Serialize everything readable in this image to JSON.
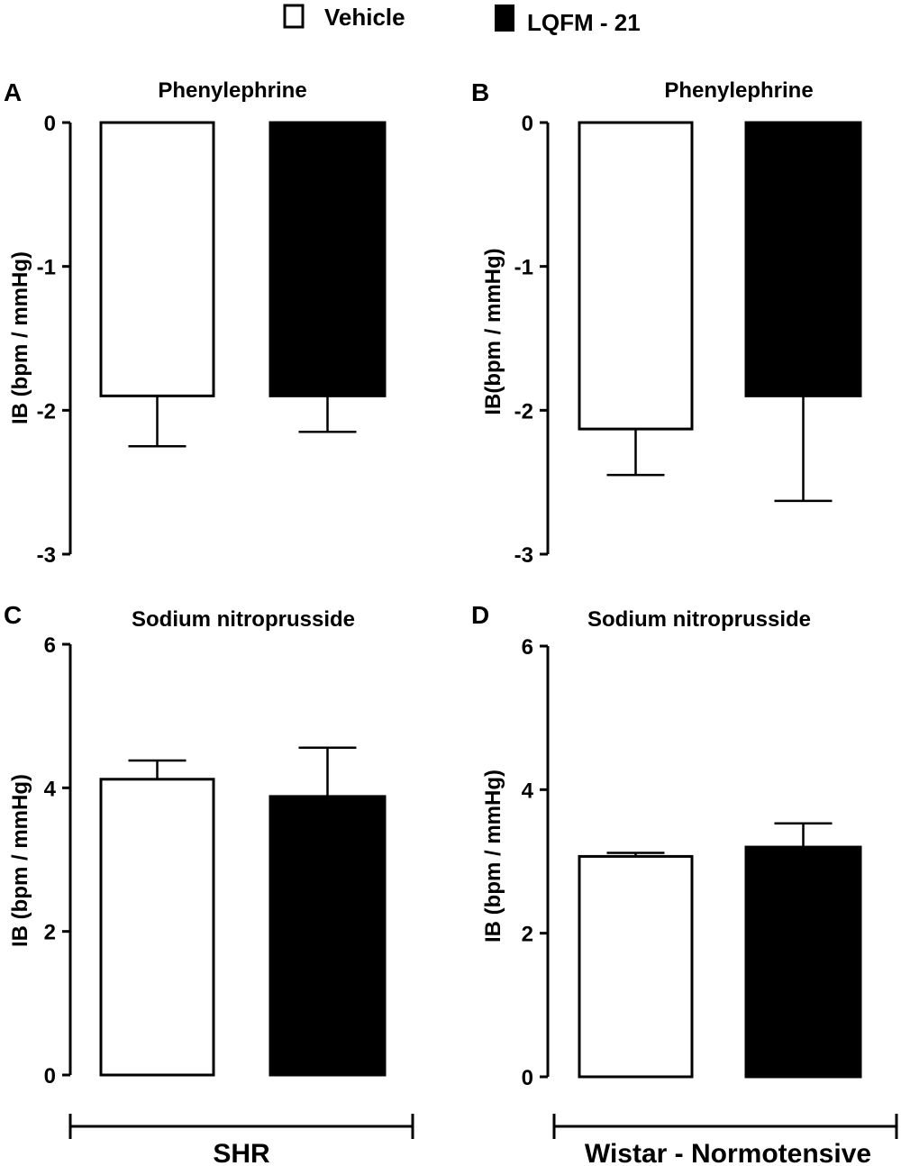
{
  "legend": {
    "items": [
      {
        "label": "Vehicle",
        "fill": "#ffffff"
      },
      {
        "label": "LQFM - 21",
        "fill": "#000000"
      }
    ]
  },
  "group_labels": {
    "left": "SHR",
    "right": "Wistar - Normotensive"
  },
  "colors": {
    "vehicle": "#ffffff",
    "lqfm": "#000000",
    "stroke": "#000000"
  },
  "chart_data": [
    {
      "panel": "A",
      "type": "bar",
      "title": "Phenylephrine",
      "ylabel": "IB (bpm / mmHg)",
      "ylim": [
        -3,
        0
      ],
      "yticks": [
        "0",
        "-1",
        "-2",
        "-3"
      ],
      "grid": false,
      "categories": [
        "Vehicle",
        "LQFM - 21"
      ],
      "values": [
        -1.9,
        -1.9
      ],
      "errors": [
        0.35,
        0.25
      ]
    },
    {
      "panel": "B",
      "type": "bar",
      "title": "Phenylephrine",
      "ylabel": "IB(bpm / mmHg)",
      "ylim": [
        -3,
        0
      ],
      "yticks": [
        "0",
        "-1",
        "-2",
        "-3"
      ],
      "grid": false,
      "categories": [
        "Vehicle",
        "LQFM - 21"
      ],
      "values": [
        -2.13,
        -1.9
      ],
      "errors": [
        0.32,
        0.73
      ]
    },
    {
      "panel": "C",
      "type": "bar",
      "title": "Sodium nitroprusside",
      "ylabel": "IB (bpm / mmHg)",
      "ylim": [
        0,
        6
      ],
      "yticks": [
        "0",
        "2",
        "4",
        "6"
      ],
      "grid": false,
      "categories": [
        "Vehicle",
        "LQFM - 21"
      ],
      "values": [
        4.12,
        3.88
      ],
      "errors": [
        0.26,
        0.68
      ]
    },
    {
      "panel": "D",
      "type": "bar",
      "title": "Sodium nitroprusside",
      "ylabel": "IB (bpm / mmHg)",
      "ylim": [
        0,
        6
      ],
      "yticks": [
        "0",
        "2",
        "4",
        "6"
      ],
      "grid": false,
      "categories": [
        "Vehicle",
        "LQFM - 21"
      ],
      "values": [
        3.07,
        3.2
      ],
      "errors": [
        0.05,
        0.33
      ]
    }
  ]
}
